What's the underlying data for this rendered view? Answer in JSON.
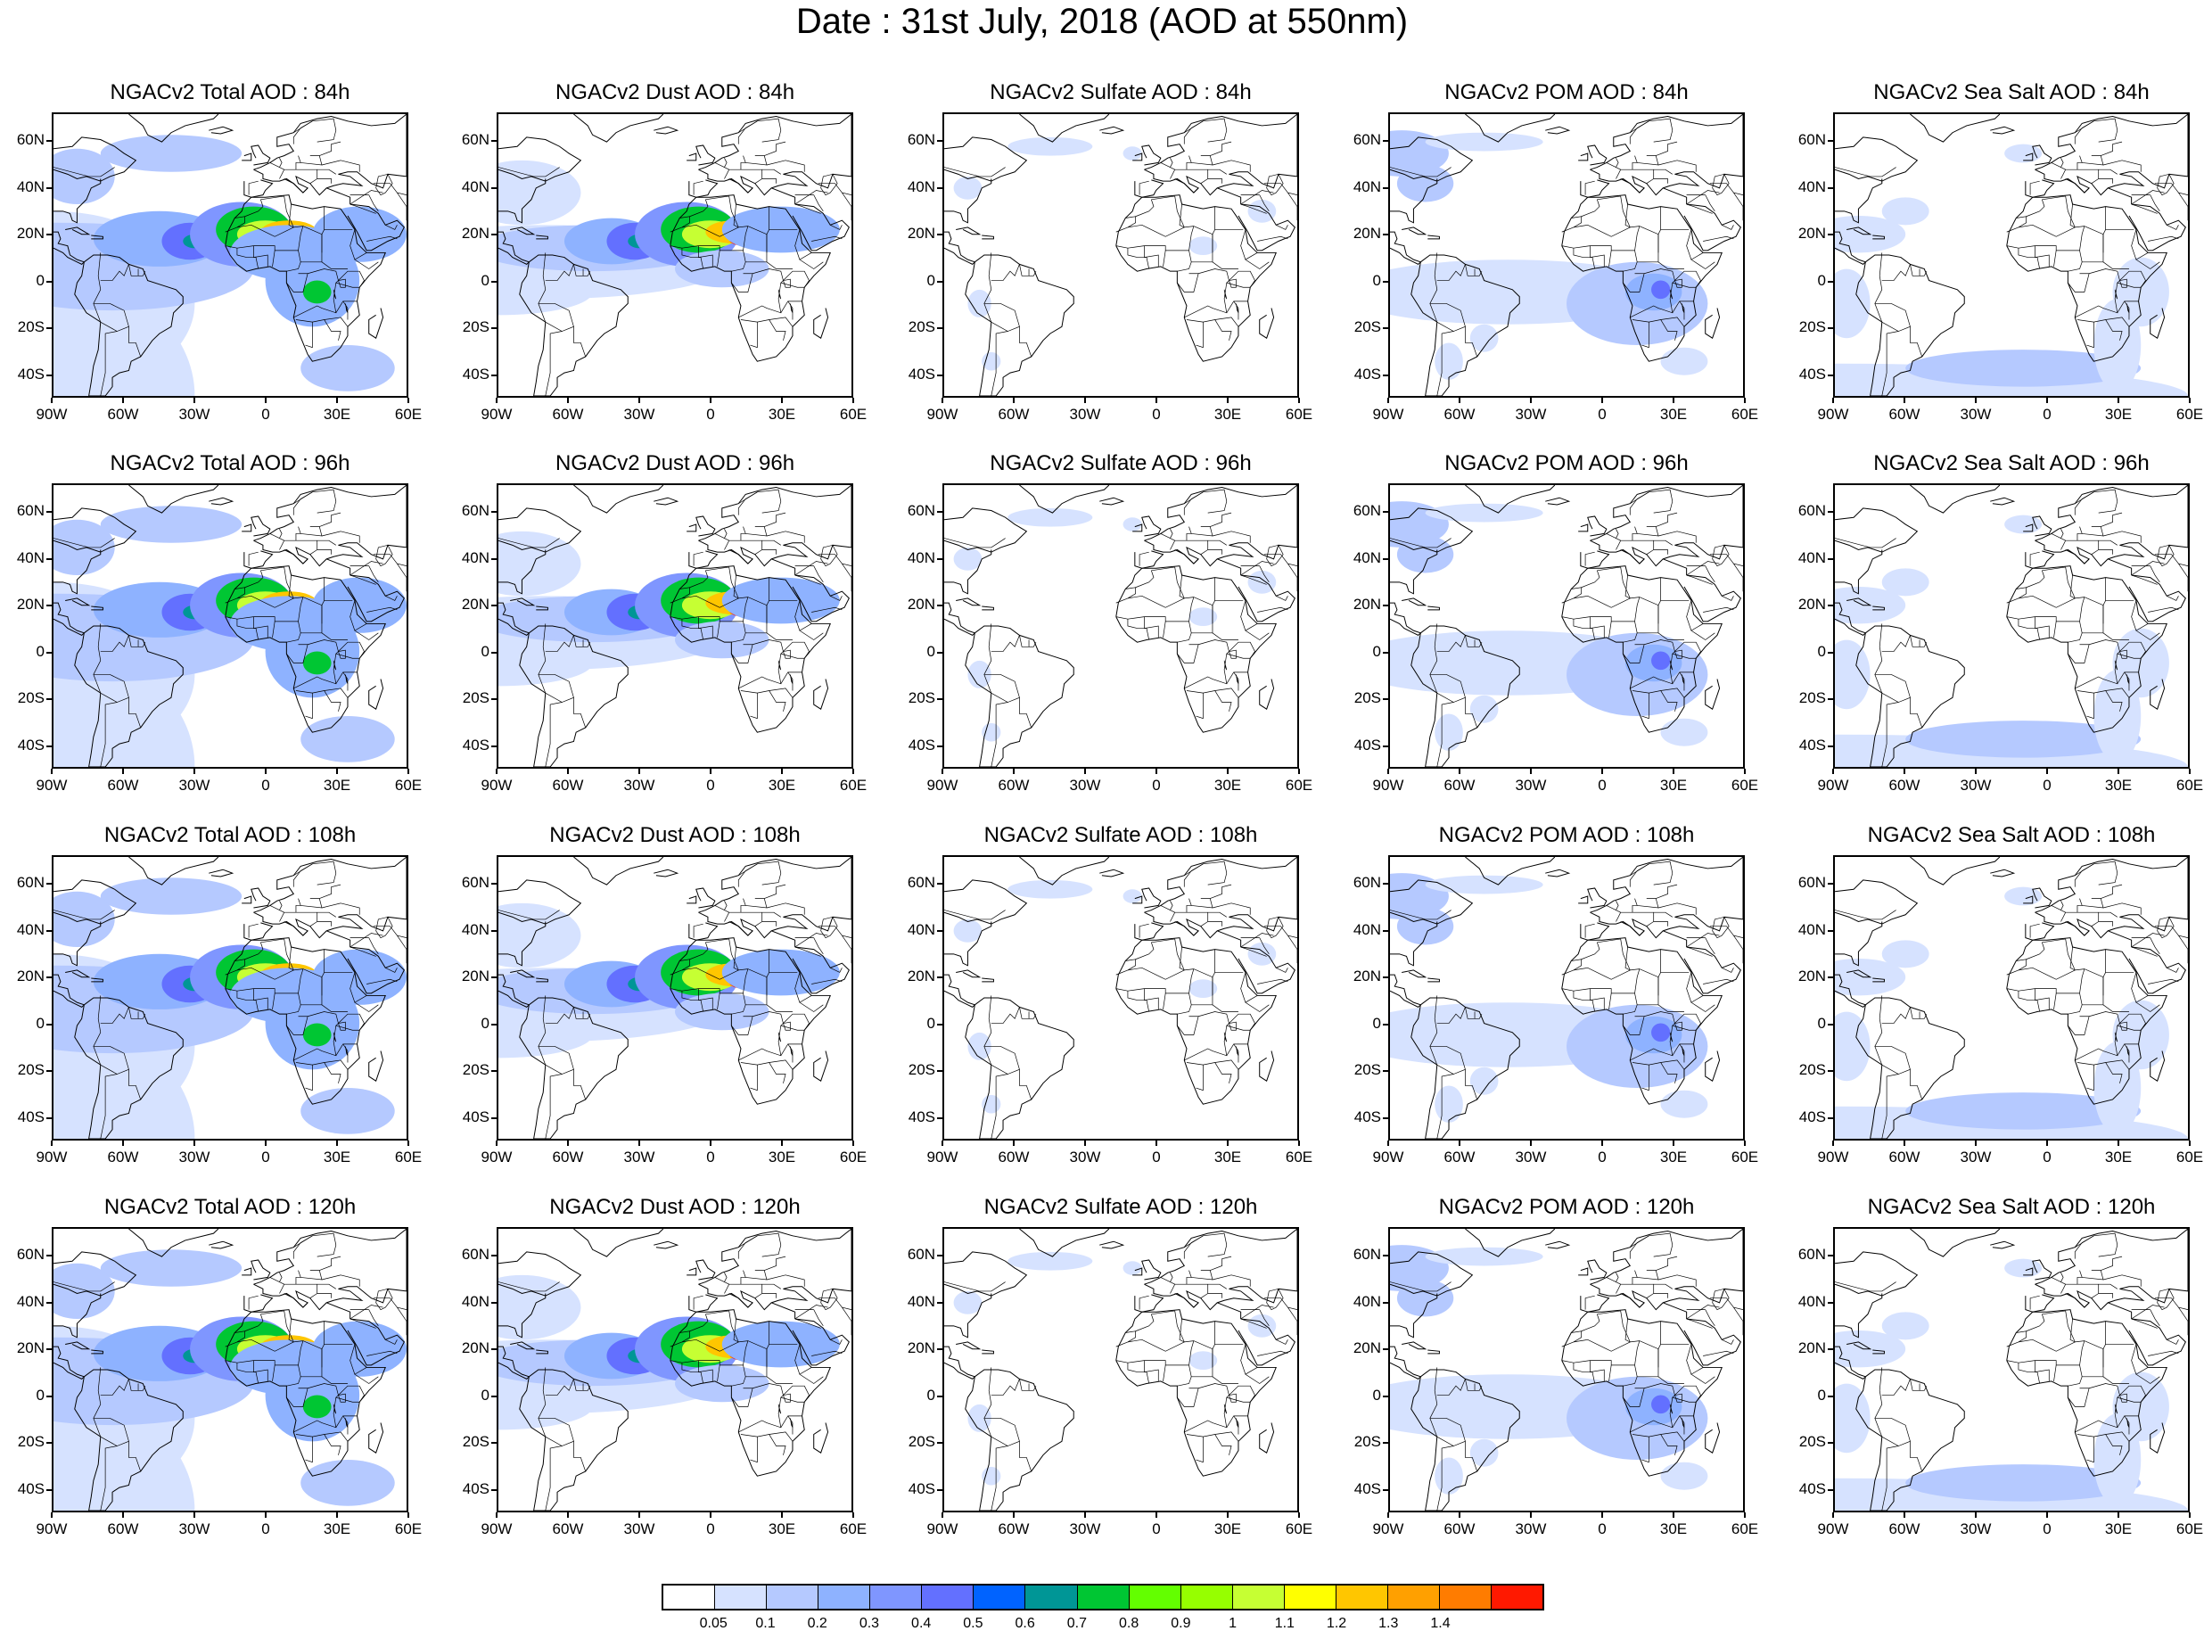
{
  "title": "Date : 31st July, 2018 (AOD at 550nm)",
  "lat_labels": [
    "60N",
    "40N",
    "20N",
    "0",
    "20S",
    "40S"
  ],
  "lon_labels": [
    "90W",
    "60W",
    "30W",
    "0",
    "30E",
    "60E"
  ],
  "rows": [
    {
      "panels": [
        {
          "label": "NGACv2 Total AOD : 84h",
          "species": "total"
        },
        {
          "label": "NGACv2 Dust AOD : 84h",
          "species": "dust"
        },
        {
          "label": "NGACv2 Sulfate AOD : 84h",
          "species": "sulfate"
        },
        {
          "label": "NGACv2 POM AOD : 84h",
          "species": "pom"
        },
        {
          "label": "NGACv2 Sea Salt AOD : 84h",
          "species": "seasalt"
        }
      ]
    },
    {
      "panels": [
        {
          "label": "NGACv2 Total AOD : 96h",
          "species": "total"
        },
        {
          "label": "NGACv2 Dust AOD : 96h",
          "species": "dust"
        },
        {
          "label": "NGACv2 Sulfate AOD : 96h",
          "species": "sulfate"
        },
        {
          "label": "NGACv2 POM AOD : 96h",
          "species": "pom"
        },
        {
          "label": "NGACv2 Sea Salt AOD : 96h",
          "species": "seasalt"
        }
      ]
    },
    {
      "panels": [
        {
          "label": "NGACv2 Total AOD : 108h",
          "species": "total"
        },
        {
          "label": "NGACv2 Dust AOD : 108h",
          "species": "dust"
        },
        {
          "label": "NGACv2 Sulfate AOD : 108h",
          "species": "sulfate"
        },
        {
          "label": "NGACv2 POM AOD : 108h",
          "species": "pom"
        },
        {
          "label": "NGACv2 Sea Salt AOD : 108h",
          "species": "seasalt"
        }
      ]
    },
    {
      "panels": [
        {
          "label": "NGACv2 Total AOD : 120h",
          "species": "total"
        },
        {
          "label": "NGACv2 Dust AOD : 120h",
          "species": "dust"
        },
        {
          "label": "NGACv2 Sulfate AOD : 120h",
          "species": "sulfate"
        },
        {
          "label": "NGACv2 POM AOD : 120h",
          "species": "pom"
        },
        {
          "label": "NGACv2 Sea Salt  AOD : 120h",
          "species": "seasalt"
        }
      ]
    }
  ],
  "colorbar": {
    "labels": [
      "0.05",
      "0.1",
      "0.2",
      "0.3",
      "0.4",
      "0.5",
      "0.6",
      "0.7",
      "0.8",
      "0.9",
      "1",
      "1.1",
      "1.2",
      "1.3",
      "1.4"
    ],
    "colors": [
      "#ffffff",
      "#d6e2ff",
      "#b5c9ff",
      "#8eb2ff",
      "#7f96ff",
      "#6370ff",
      "#0063ff",
      "#009696",
      "#00c633",
      "#63ff00",
      "#96ff00",
      "#c6ff33",
      "#ffff00",
      "#ffc600",
      "#ffa000",
      "#ff7c00",
      "#ff1900"
    ]
  },
  "palette": {
    "l1": "#d6e2ff",
    "l2": "#b5c9ff",
    "l3": "#8eb2ff",
    "l4": "#7f96ff",
    "l5": "#6370ff",
    "l6": "#0063ff",
    "l7": "#009696",
    "l8": "#00c633",
    "l9": "#63ff00",
    "l10": "#c6ff33",
    "l11": "#ffff00",
    "l12": "#ffc600",
    "l13": "#ffa000",
    "l14": "#ff7c00",
    "l15": "#ff1900"
  }
}
